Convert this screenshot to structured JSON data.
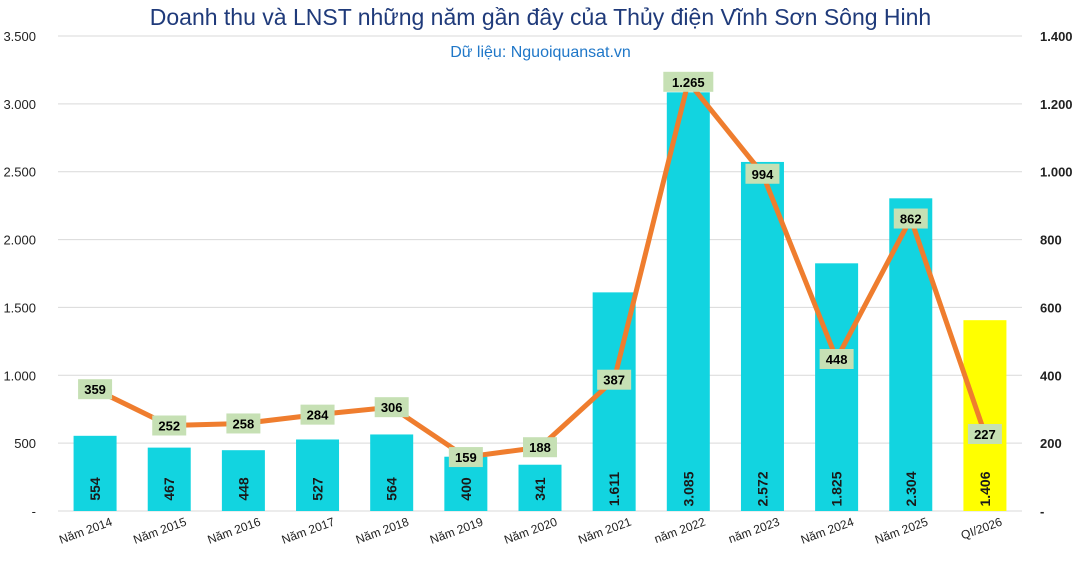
{
  "chart_data": {
    "type": "bar",
    "title": "Doanh thu và LNST những năm gần đây của Thủy điện Vĩnh Sơn Sông Hinh",
    "subtitle": "Dữ liệu: Nguoiquansat.vn",
    "categories": [
      "Năm 2014",
      "Năm 2015",
      "Năm 2016",
      "Năm 2017",
      "Năm 2018",
      "Năm 2019",
      "Năm 2020",
      "Năm 2021",
      "năm 2022",
      "năm 2023",
      "Năm 2024",
      "Năm 2025",
      "QI/2026"
    ],
    "series": [
      {
        "type": "bar",
        "axis": "left",
        "values": [
          554,
          467,
          448,
          527,
          564,
          400,
          341,
          1611,
          3085,
          2572,
          1825,
          2304,
          1406
        ],
        "value_labels": [
          "554",
          "467",
          "448",
          "527",
          "564",
          "400",
          "341",
          "1.611",
          "3.085",
          "2.572",
          "1.825",
          "2.304",
          "1.406"
        ],
        "color": "#12d4e0",
        "highlight_last_color": "#ffff00"
      },
      {
        "type": "line",
        "axis": "right",
        "values": [
          359,
          252,
          258,
          284,
          306,
          159,
          188,
          387,
          1265,
          994,
          448,
          862,
          227
        ],
        "value_labels": [
          "359",
          "252",
          "258",
          "284",
          "306",
          "159",
          "188",
          "387",
          "1.265",
          "994",
          "448",
          "862",
          "227"
        ],
        "color": "#ef7d2e",
        "label_bg": "#c6e0b4"
      }
    ],
    "y_left": {
      "min": 0,
      "max": 3500,
      "step": 500,
      "tick_labels": [
        "-",
        "500",
        "1.000",
        "1.500",
        "2.000",
        "2.500",
        "3.000",
        "3.500"
      ]
    },
    "y_right": {
      "min": 0,
      "max": 1400,
      "step": 200,
      "tick_labels": [
        "-",
        "200",
        "400",
        "600",
        "800",
        "1.000",
        "1.200",
        "1.400"
      ]
    },
    "grid": true,
    "legend": "none"
  }
}
